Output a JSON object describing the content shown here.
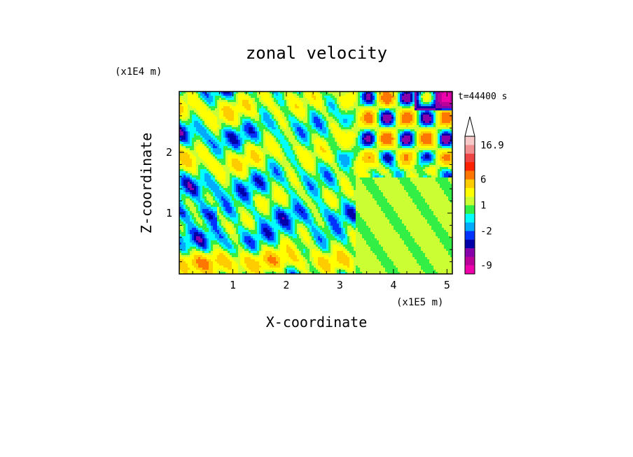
{
  "chart_data": {
    "type": "heatmap",
    "title": "zonal velocity",
    "xlabel": "X-coordinate",
    "ylabel": "Z-coordinate",
    "x_unit": "(x1E5 m)",
    "y_unit": "(x1E4 m)",
    "time_label": "t=44400 s",
    "x_ticks": [
      "1",
      "2",
      "3",
      "4",
      "5"
    ],
    "x_tick_values": [
      1,
      2,
      3,
      4,
      5
    ],
    "y_ticks": [
      "1",
      "2"
    ],
    "y_tick_values": [
      1,
      2
    ],
    "xlim": [
      0.0,
      5.1
    ],
    "ylim": [
      0.0,
      3.0
    ],
    "colorbar": {
      "labels": [
        "16.9",
        "6",
        "1",
        "-2",
        "-9"
      ],
      "label_values": [
        16.9,
        6,
        1,
        -2,
        -9
      ],
      "levels": [
        -12,
        -9,
        -6,
        -4,
        -3,
        -2,
        -1,
        0,
        1,
        2,
        4,
        6,
        9,
        12,
        14,
        16.9,
        20
      ],
      "colors": [
        "#ee00aa",
        "#bb0099",
        "#8800aa",
        "#0000aa",
        "#0033ff",
        "#00aaff",
        "#00ffff",
        "#33ee44",
        "#ccff33",
        "#ffff00",
        "#ffcc00",
        "#ff7700",
        "#ff2200",
        "#ee4444",
        "#f09090",
        "#f6c8c8"
      ],
      "extend": "max"
    },
    "field_description": "banded wavy zonal velocity field: mostly yellow/green with orange and blue bands; strong alternating orange/blue checkerboard cells in upper right (x 3-5, z 2-3)"
  }
}
